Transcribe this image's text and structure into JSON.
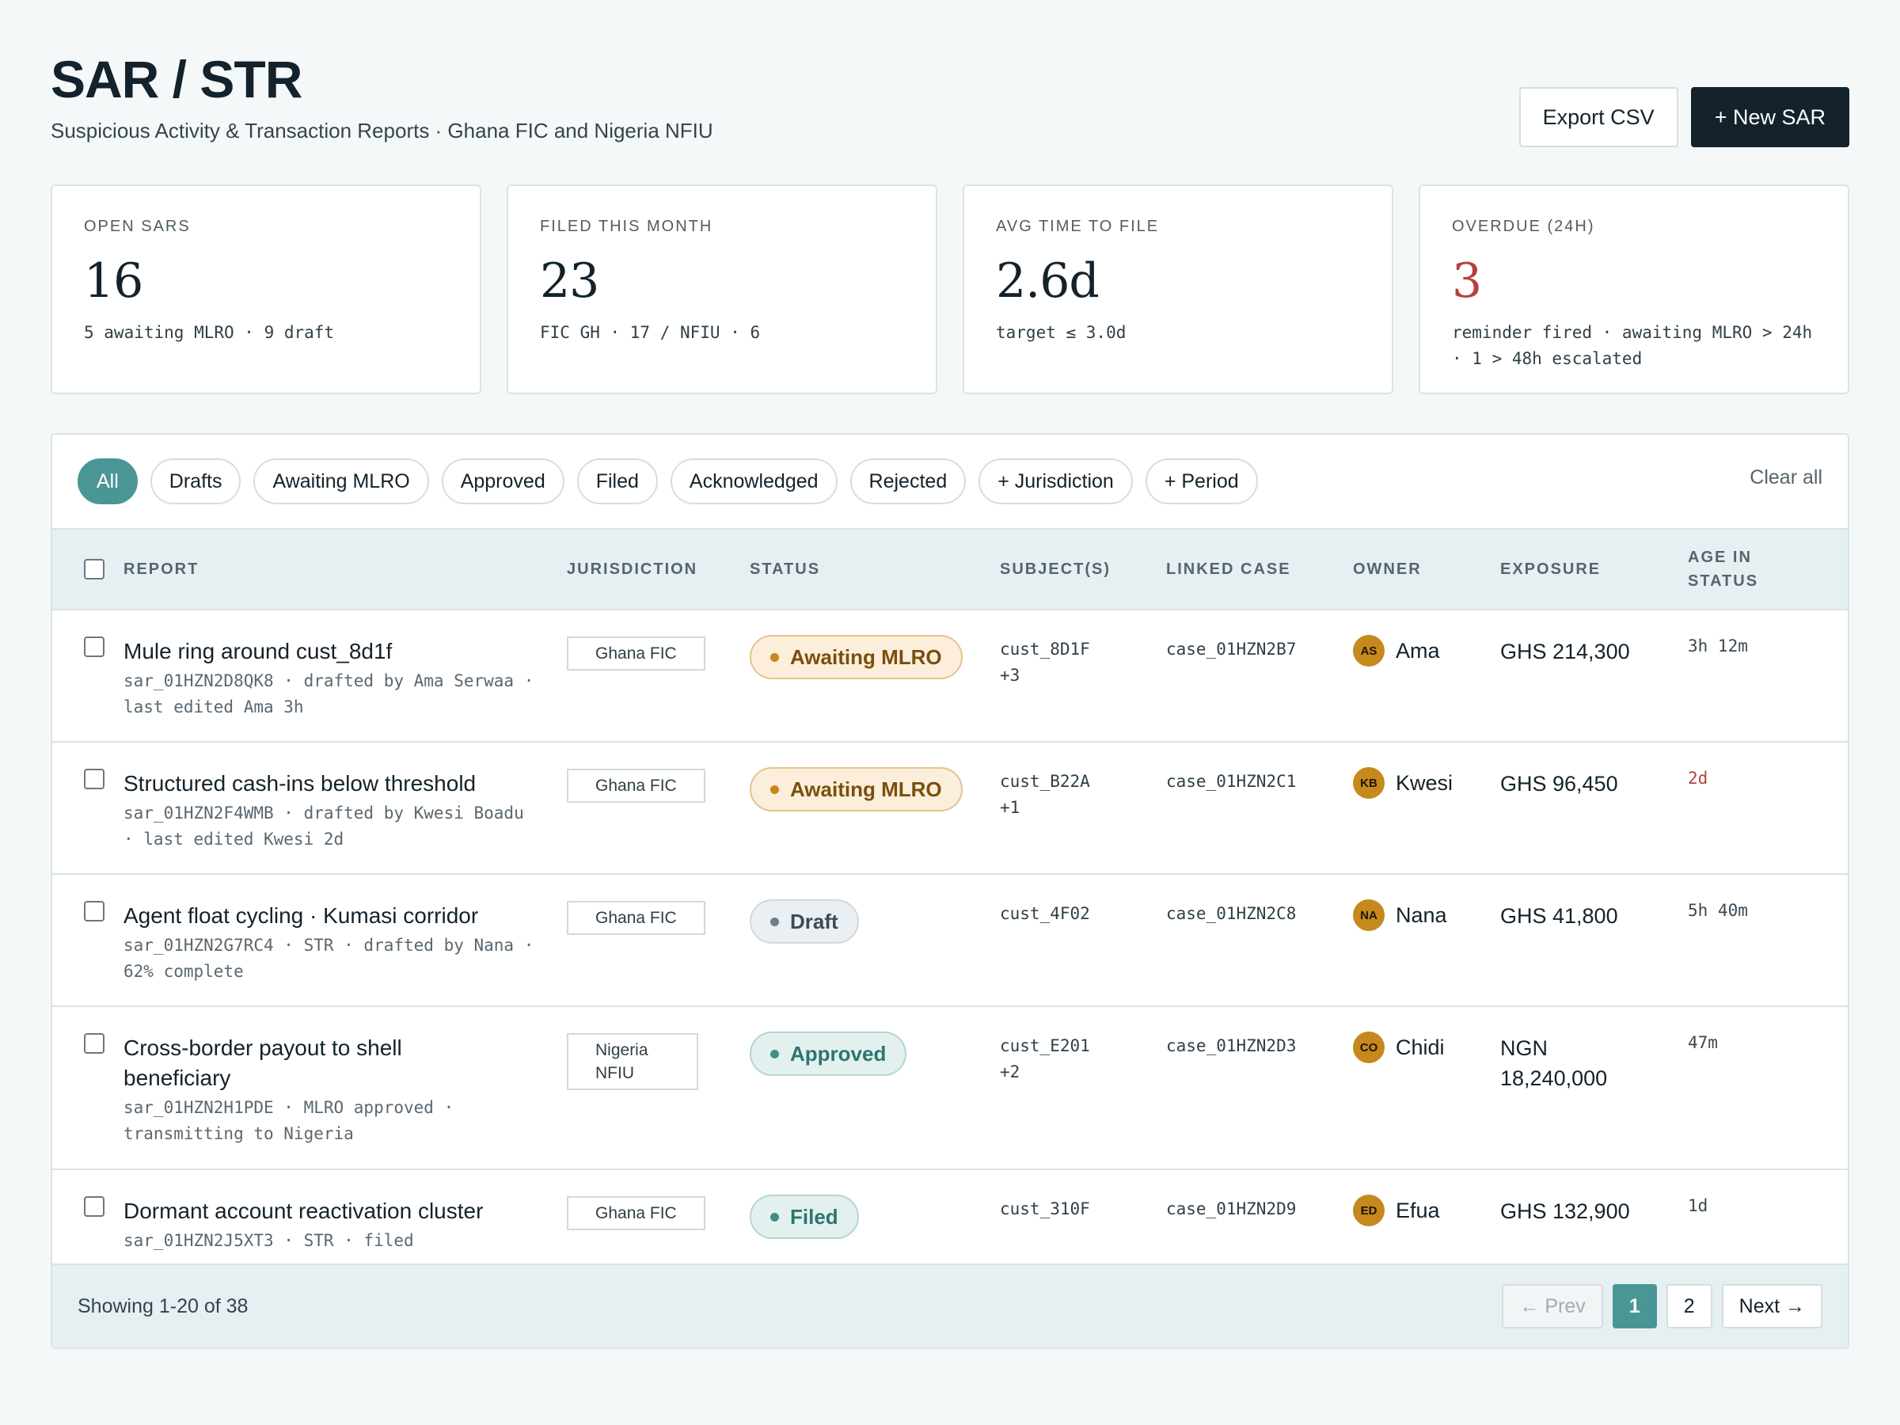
{
  "header": {
    "title": "SAR / STR",
    "subtitle": "Suspicious Activity & Transaction Reports · Ghana FIC and Nigeria NFIU",
    "export_label": "Export CSV",
    "new_label": "+ New SAR"
  },
  "stats": [
    {
      "label": "OPEN SARS",
      "value": "16",
      "note": "5 awaiting MLRO · 9 draft"
    },
    {
      "label": "FILED THIS MONTH",
      "value": "23",
      "note": "FIC GH · 17 / NFIU · 6"
    },
    {
      "label": "AVG TIME TO FILE",
      "value": "2.6d",
      "note": "target ≤ 3.0d"
    },
    {
      "label": "OVERDUE (24H)",
      "value": "3",
      "note": "reminder fired · awaiting MLRO > 24h · 1 > 48h escalated"
    }
  ],
  "filters": {
    "chips": [
      "All",
      "Drafts",
      "Awaiting MLRO",
      "Approved",
      "Filed",
      "Acknowledged",
      "Rejected",
      "+ Jurisdiction",
      "+ Period"
    ],
    "active": "All",
    "clear_label": "Clear all"
  },
  "table": {
    "columns": {
      "report": "REPORT",
      "jurisdiction": "JURISDICTION",
      "status": "STATUS",
      "subjects": "SUBJECT(S)",
      "linked_case": "LINKED CASE",
      "owner": "OWNER",
      "exposure": "EXPOSURE",
      "age_line1": "AGE IN",
      "age_line2": "STATUS"
    },
    "rows": [
      {
        "title": "Mule ring around cust_8d1f",
        "meta": "sar_01HZN2D8QK8 · drafted by Ama Serwaa · last edited Ama 3h",
        "jurisdiction": "Ghana FIC",
        "status": "Awaiting MLRO",
        "subjects_line1": "cust_8D1F",
        "subjects_line2": "+3",
        "linked_case": "case_01HZN2B7",
        "owner_initials": "AS",
        "owner": "Ama",
        "exposure": "GHS 214,300",
        "age": "3h 12m"
      },
      {
        "title": "Structured cash-ins below threshold",
        "meta": "sar_01HZN2F4WMB · drafted by Kwesi Boadu · last edited Kwesi 2d",
        "jurisdiction": "Ghana FIC",
        "status": "Awaiting MLRO",
        "subjects_line1": "cust_B22A",
        "subjects_line2": "+1",
        "linked_case": "case_01HZN2C1",
        "owner_initials": "KB",
        "owner": "Kwesi",
        "exposure": "GHS 96,450",
        "age": "2d"
      },
      {
        "title": "Agent float cycling · Kumasi corridor",
        "meta": "sar_01HZN2G7RC4 · STR · drafted by Nana · 62% complete",
        "jurisdiction": "Ghana FIC",
        "status": "Draft",
        "subjects_line1": "cust_4F02",
        "subjects_line2": "",
        "linked_case": "case_01HZN2C8",
        "owner_initials": "NA",
        "owner": "Nana",
        "exposure": "GHS 41,800",
        "age": "5h 40m"
      },
      {
        "title": "Cross-border payout to shell beneficiary",
        "meta": "sar_01HZN2H1PDE · MLRO approved · transmitting to Nigeria",
        "jurisdiction": "Nigeria NFIU",
        "status": "Approved",
        "subjects_line1": "cust_E201",
        "subjects_line2": "+2",
        "linked_case": "case_01HZN2D3",
        "owner_initials": "CO",
        "owner": "Chidi",
        "exposure": "NGN 18,240,000",
        "age": "47m"
      },
      {
        "title": "Dormant account reactivation cluster",
        "meta": "sar_01HZN2J5XT3 · STR · filed",
        "jurisdiction": "Ghana FIC",
        "status": "Filed",
        "subjects_line1": "cust_310F",
        "subjects_line2": "",
        "linked_case": "case_01HZN2D9",
        "owner_initials": "ED",
        "owner": "Efua",
        "exposure": "GHS 132,900",
        "age": "1d"
      }
    ]
  },
  "footer": {
    "showing": "Showing 1-20 of 38",
    "prev_label": "← Prev",
    "pages": [
      "1",
      "2"
    ],
    "current_page": "1",
    "next_label": "Next →"
  },
  "colors": {
    "accent": "#4a9696",
    "dark": "#13222b",
    "alert": "#b5413a",
    "awaiting": "#c7861c"
  }
}
